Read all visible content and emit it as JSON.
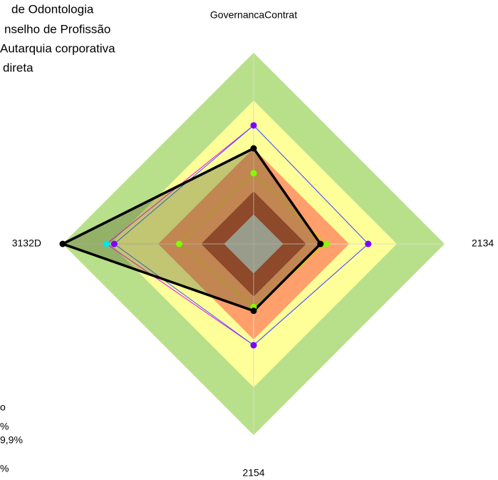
{
  "chart_data": {
    "type": "radar",
    "categories": [
      "GovernancaContrat",
      "2134",
      "2154",
      "3132D"
    ],
    "ylim": [
      0,
      100
    ],
    "bands": [
      {
        "value": 100,
        "color": "#b8e08a"
      },
      {
        "value": 75,
        "color": "#ffff99"
      },
      {
        "value": 50,
        "color": "#ff9f6b"
      },
      {
        "value": 27.5,
        "color": "#b0402b"
      },
      {
        "value": 15.5,
        "color": "#c0c0c0"
      }
    ],
    "series": [
      {
        "color": "#7fff00",
        "line_color": "#c8d400",
        "values": [
          37,
          38,
          33,
          39
        ]
      },
      {
        "color": "#00e5ee",
        "line_color": "#ff00ff",
        "values": [
          62,
          60,
          53,
          77
        ]
      },
      {
        "color": "#7f00ff",
        "line_color": "#3060ff",
        "values": [
          62,
          60,
          53,
          73
        ]
      },
      {
        "color": "#000000",
        "line_color": "#000000",
        "fill": "rgba(80,90,40,0.35)",
        "values": [
          50,
          35,
          35,
          100
        ]
      }
    ],
    "legend_top": [
      "de Odontologia",
      "nselho de Profissão",
      "Autarquia corporativa",
      "direta"
    ],
    "legend_bottom": [
      "o",
      "%",
      "9,9%",
      "%"
    ]
  }
}
